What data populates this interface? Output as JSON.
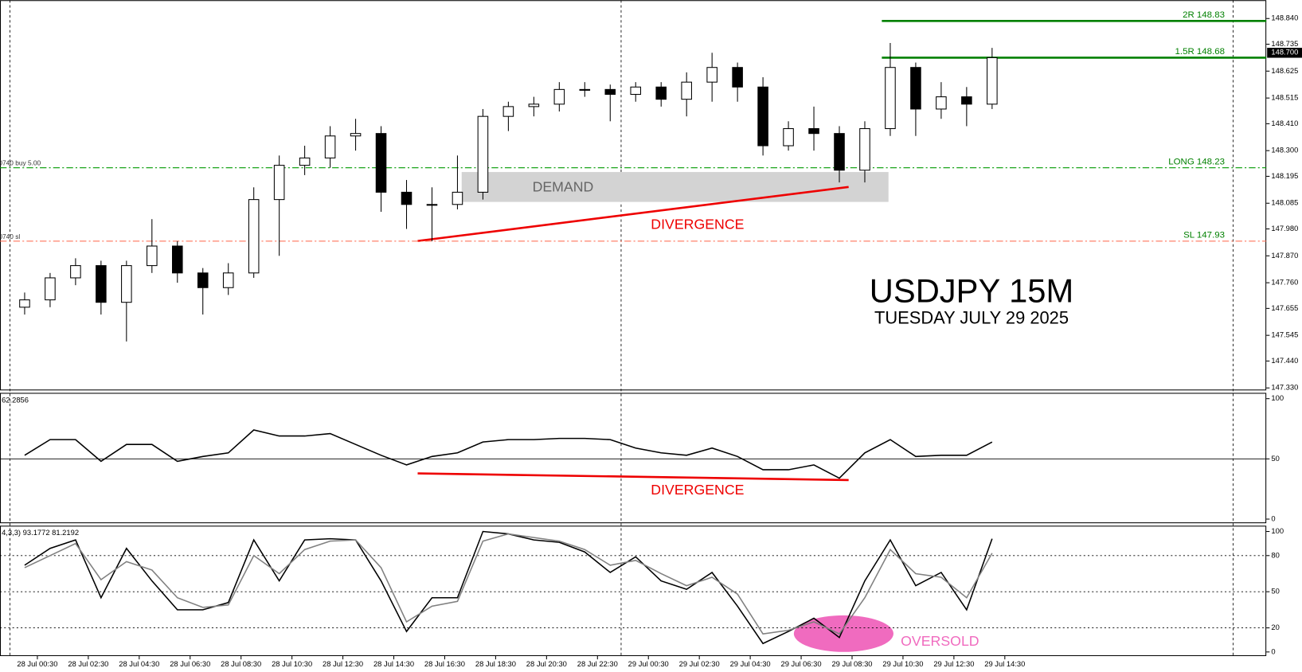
{
  "chart_data": [
    {
      "type": "candlestick",
      "title": "USDJPY 15M",
      "subtitle": "TUESDAY JULY 29 2025",
      "annotations": {
        "demand": "DEMAND",
        "divergence": "DIVERGENCE"
      },
      "x": [
        0,
        1,
        2,
        3,
        4,
        5,
        6,
        7,
        8,
        9,
        10,
        11,
        12,
        13,
        14,
        15,
        16,
        17,
        18,
        19,
        20,
        21,
        22,
        23,
        24,
        25,
        26,
        27,
        28,
        29,
        30,
        31,
        32,
        33,
        34,
        35,
        36,
        37,
        38
      ],
      "open": [
        147.66,
        147.69,
        147.78,
        147.83,
        147.68,
        147.83,
        147.91,
        147.8,
        147.74,
        147.8,
        148.1,
        148.24,
        148.27,
        148.36,
        148.37,
        148.13,
        148.08,
        148.08,
        148.13,
        148.44,
        148.48,
        148.49,
        148.55,
        148.55,
        148.53,
        148.56,
        148.51,
        148.58,
        148.64,
        148.56,
        148.32,
        148.39,
        148.37,
        148.22,
        148.39,
        148.64,
        148.47,
        148.52,
        148.49
      ],
      "high": [
        147.72,
        147.8,
        147.86,
        147.85,
        147.85,
        148.02,
        147.93,
        147.82,
        147.84,
        148.15,
        148.28,
        148.32,
        148.4,
        148.43,
        148.4,
        148.18,
        148.15,
        148.28,
        148.47,
        148.5,
        148.52,
        148.58,
        148.58,
        148.57,
        148.58,
        148.58,
        148.62,
        148.7,
        148.66,
        148.6,
        148.42,
        148.48,
        148.4,
        148.42,
        148.74,
        148.66,
        148.58,
        148.56,
        148.72
      ],
      "low": [
        147.63,
        147.66,
        147.75,
        147.63,
        147.52,
        147.8,
        147.76,
        147.63,
        147.71,
        147.78,
        147.87,
        148.2,
        148.23,
        148.3,
        148.05,
        147.98,
        147.93,
        148.06,
        148.1,
        148.38,
        148.44,
        148.46,
        148.52,
        148.42,
        148.5,
        148.48,
        148.44,
        148.5,
        148.5,
        148.28,
        148.3,
        148.3,
        148.17,
        148.17,
        148.36,
        148.36,
        148.43,
        148.4,
        148.47
      ],
      "close": [
        147.69,
        147.78,
        147.83,
        147.68,
        147.83,
        147.91,
        147.8,
        147.74,
        147.8,
        148.1,
        148.24,
        148.27,
        148.36,
        148.37,
        148.13,
        148.08,
        148.08,
        148.13,
        148.44,
        148.48,
        148.49,
        148.55,
        148.55,
        148.53,
        148.56,
        148.51,
        148.58,
        148.64,
        148.56,
        148.32,
        148.39,
        148.37,
        148.22,
        148.39,
        148.64,
        148.47,
        148.52,
        148.49,
        148.68
      ],
      "xlim": [
        -0.968,
        48.77
      ],
      "xticks": [
        {
          "value": 0.5,
          "label": "28 Jul 00:30"
        },
        {
          "value": 2.5,
          "label": "28 Jul 02:30"
        },
        {
          "value": 4.5,
          "label": "28 Jul 04:30"
        },
        {
          "value": 6.5,
          "label": "28 Jul 06:30"
        },
        {
          "value": 8.5,
          "label": "28 Jul 08:30"
        },
        {
          "value": 10.5,
          "label": "28 Jul 10:30"
        },
        {
          "value": 12.5,
          "label": "28 Jul 12:30"
        },
        {
          "value": 14.5,
          "label": "28 Jul 14:30"
        },
        {
          "value": 16.5,
          "label": "28 Jul 16:30"
        },
        {
          "value": 18.5,
          "label": "28 Jul 18:30"
        },
        {
          "value": 20.5,
          "label": "28 Jul 20:30"
        },
        {
          "value": 22.5,
          "label": "28 Jul 22:30"
        },
        {
          "value": 24.5,
          "label": "29 Jul 00:30"
        },
        {
          "value": 26.5,
          "label": "29 Jul 02:30"
        },
        {
          "value": 28.5,
          "label": "29 Jul 04:30"
        },
        {
          "value": 30.5,
          "label": "29 Jul 06:30"
        },
        {
          "value": 32.5,
          "label": "29 Jul 08:30"
        },
        {
          "value": 34.5,
          "label": "29 Jul 10:30"
        },
        {
          "value": 36.5,
          "label": "29 Jul 12:30"
        },
        {
          "value": 38.5,
          "label": "29 Jul 14:30"
        }
      ],
      "ylim": [
        147.32,
        148.915
      ],
      "yticks": [
        {
          "value": 148.84,
          "label": "148.840"
        },
        148.735,
        148.625,
        148.515,
        {
          "value": 148.41,
          "label": "148.410"
        },
        {
          "value": 148.3,
          "label": "148.300"
        },
        148.195,
        148.085,
        {
          "value": 147.98,
          "label": "147.980"
        },
        {
          "value": 147.87,
          "label": "147.870"
        },
        {
          "value": 147.76,
          "label": "147.760"
        },
        147.655,
        147.545,
        {
          "value": 147.44,
          "label": "147.440"
        },
        {
          "value": 147.33,
          "label": "147.330"
        }
      ],
      "current_price": {
        "value": 148.7,
        "label": "148.700"
      },
      "levels": [
        {
          "label": "2R 148.83",
          "value": 148.83,
          "color": "#008000",
          "style": "solid"
        },
        {
          "label": "1.5R 148.68",
          "value": 148.68,
          "color": "#008000",
          "style": "solid"
        },
        {
          "label": "LONG 148.23",
          "value": 148.23,
          "color": "#009900",
          "style": "dashdot",
          "left_label": "30740 buy 5.00"
        },
        {
          "label": "SL 147.93",
          "value": 147.93,
          "color": "#ff6347",
          "style": "dashdot",
          "left_label": "30740 sl"
        }
      ]
    },
    {
      "type": "line",
      "header": "62.2856",
      "annotation": "DIVERGENCE",
      "x": [
        0,
        1,
        2,
        3,
        4,
        5,
        6,
        7,
        8,
        9,
        10,
        11,
        12,
        13,
        14,
        15,
        16,
        17,
        18,
        19,
        20,
        21,
        22,
        23,
        24,
        25,
        26,
        27,
        28,
        29,
        30,
        31,
        32,
        33,
        34,
        35,
        36,
        37,
        38
      ],
      "series": [
        {
          "color": "#000000",
          "values": [
            53,
            66,
            66,
            48,
            62,
            62,
            48,
            52,
            55,
            74,
            69,
            69,
            71,
            62,
            53,
            45,
            52,
            55,
            64,
            66,
            66,
            67,
            67,
            66,
            59,
            55,
            53,
            59,
            52,
            41,
            41,
            45,
            34,
            55,
            66,
            52,
            53,
            53,
            64
          ]
        }
      ],
      "ylim": [
        -3.4,
        104.8
      ],
      "yticks": [
        0,
        50,
        100
      ],
      "hlines": [
        50
      ],
      "hline_style": "solid"
    },
    {
      "type": "line",
      "header": "4,3,3) 93.1772 81.2192",
      "annotation": "OVERSOLD",
      "x": [
        0,
        1,
        2,
        3,
        4,
        5,
        6,
        7,
        8,
        9,
        10,
        11,
        12,
        13,
        14,
        15,
        16,
        17,
        18,
        19,
        20,
        21,
        22,
        23,
        24,
        25,
        26,
        27,
        28,
        29,
        30,
        31,
        32,
        33,
        34,
        35,
        36,
        37,
        38
      ],
      "series": [
        {
          "color": "#000000",
          "values": [
            72,
            86,
            93,
            45,
            86,
            59,
            35,
            35,
            41,
            93,
            59,
            93,
            94,
            93,
            59,
            17,
            45,
            45,
            100,
            98,
            93,
            91,
            83,
            66,
            79,
            59,
            52,
            66,
            38,
            7,
            17,
            28,
            12,
            59,
            93,
            55,
            66,
            35,
            94
          ]
        },
        {
          "color": "#808080",
          "values": [
            70,
            80,
            90,
            60,
            75,
            68,
            45,
            37,
            39,
            80,
            65,
            85,
            92,
            93,
            70,
            25,
            38,
            42,
            92,
            98,
            95,
            92,
            85,
            72,
            76,
            65,
            55,
            62,
            48,
            15,
            18,
            25,
            15,
            45,
            85,
            65,
            62,
            45,
            82
          ]
        }
      ],
      "ylim": [
        -3.4,
        104.8
      ],
      "yticks": [
        0,
        20,
        50,
        80,
        100
      ],
      "hlines": [
        20,
        50,
        80
      ],
      "hline_style": "dotted"
    }
  ]
}
